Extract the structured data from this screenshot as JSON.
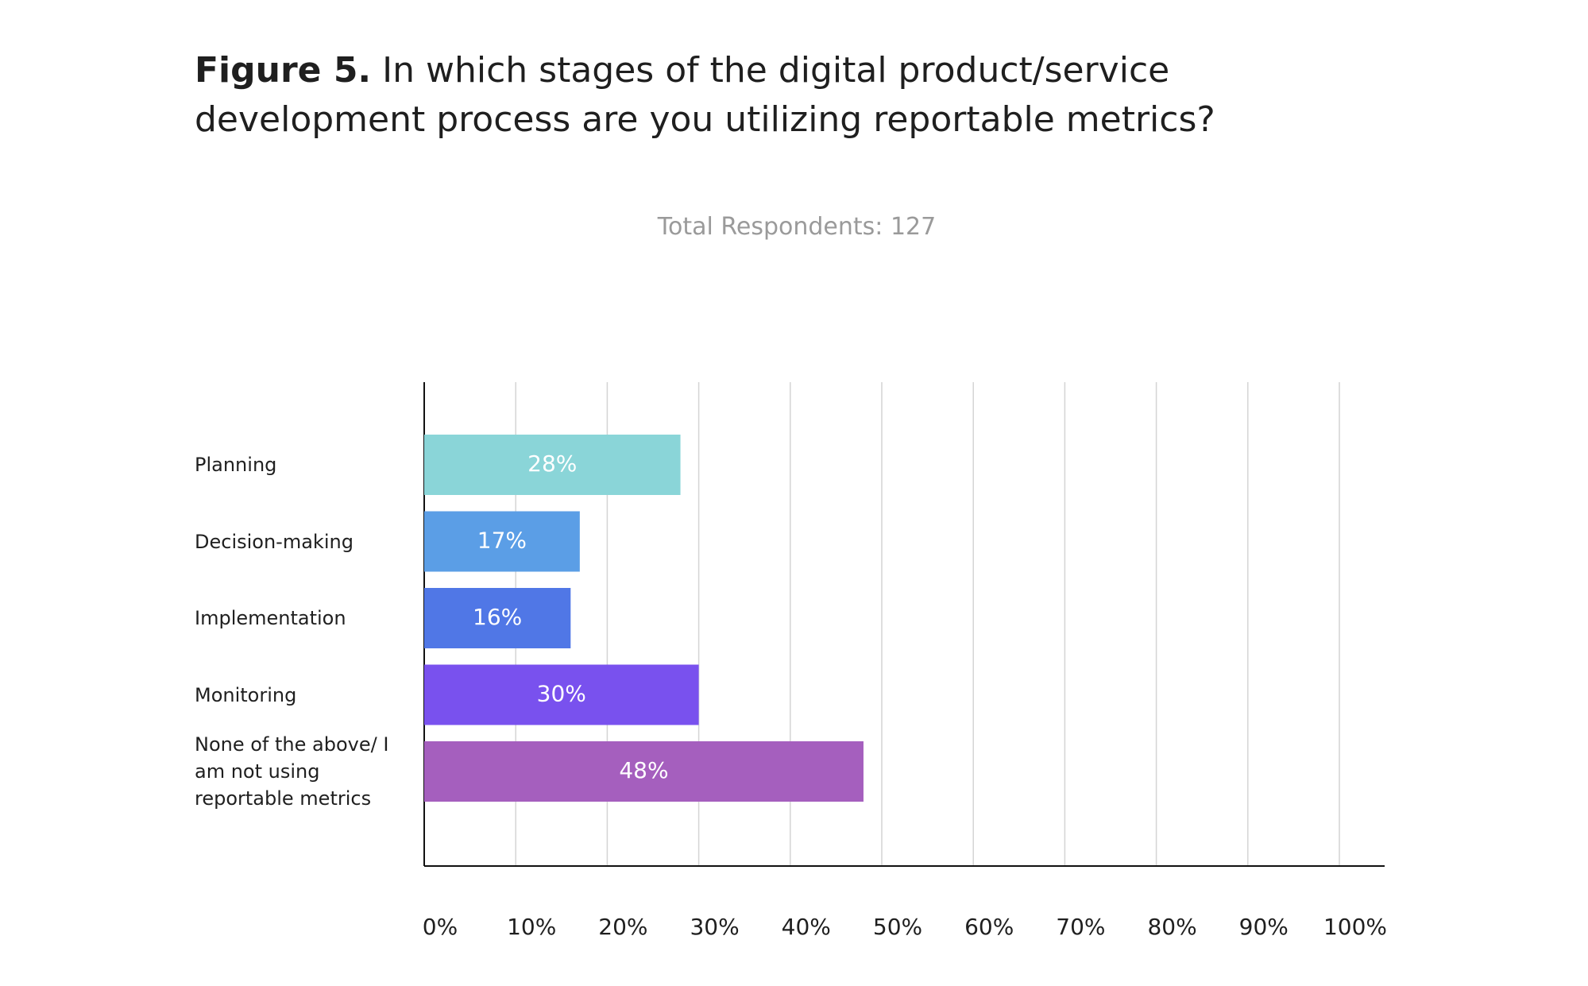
{
  "chart_data": {
    "type": "bar",
    "orientation": "horizontal",
    "title_label": "Figure 5.",
    "title": "In which stages of the digital product/service development process are you utilizing reportable metrics?",
    "subtitle": "Total Respondents: 127",
    "categories": [
      "Planning",
      "Decision-making",
      "Implementation",
      "Monitoring",
      "None of the above/ I am not using reportable metrics"
    ],
    "values": [
      28,
      17,
      16,
      30,
      48
    ],
    "value_labels": [
      "28%",
      "17%",
      "16%",
      "30%",
      "48%"
    ],
    "colors": [
      "#8ad5d8",
      "#5b9ee6",
      "#5077e6",
      "#7951ee",
      "#a55fbe"
    ],
    "xlim": [
      0,
      100
    ],
    "xticks": [
      {
        "value": 0,
        "label": "0%"
      },
      {
        "value": 10,
        "label": "10%"
      },
      {
        "value": 20,
        "label": "20%"
      },
      {
        "value": 30,
        "label": "30%"
      },
      {
        "value": 40,
        "label": "40%"
      },
      {
        "value": 50,
        "label": "50%"
      },
      {
        "value": 60,
        "label": "60%"
      },
      {
        "value": 70,
        "label": "70%"
      },
      {
        "value": 80,
        "label": "80%"
      },
      {
        "value": 90,
        "label": "90%"
      },
      {
        "value": 100,
        "label": "100%"
      }
    ],
    "grid": true
  }
}
